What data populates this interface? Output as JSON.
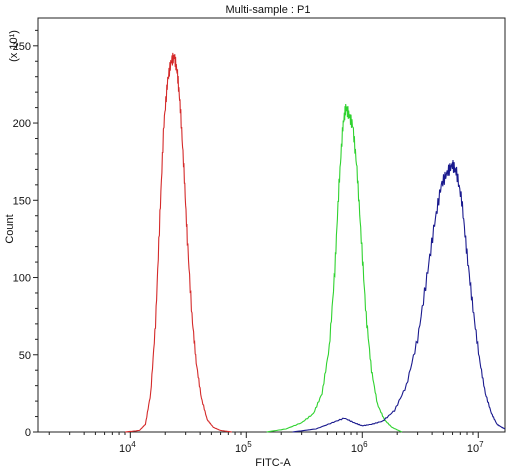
{
  "chart_data": {
    "type": "line",
    "title": "Multi-sample : P1",
    "xlabel": "FITC-A",
    "ylabel": "Count",
    "y_multiplier_label": "(x 10¹)",
    "x_scale": "log",
    "xlim": [
      1600,
      17000000
    ],
    "ylim": [
      0,
      268
    ],
    "x_ticks": [
      {
        "value": 10000,
        "base": "10",
        "exp": "4"
      },
      {
        "value": 100000,
        "base": "10",
        "exp": "5"
      },
      {
        "value": 1000000,
        "base": "10",
        "exp": "6"
      },
      {
        "value": 10000000,
        "base": "10",
        "exp": "7"
      }
    ],
    "y_ticks": [
      0,
      50,
      100,
      150,
      200,
      250
    ],
    "y_tick_labels": [
      "0",
      "50",
      "100",
      "150",
      "200",
      "250"
    ],
    "grid": false,
    "series": [
      {
        "color": "#d42a2a",
        "points": [
          [
            9000,
            0
          ],
          [
            12000,
            1
          ],
          [
            13500,
            5
          ],
          [
            15000,
            25
          ],
          [
            16500,
            70
          ],
          [
            18000,
            140
          ],
          [
            19500,
            200
          ],
          [
            21000,
            228
          ],
          [
            22500,
            240
          ],
          [
            24000,
            243
          ],
          [
            25500,
            232
          ],
          [
            27000,
            210
          ],
          [
            29000,
            170
          ],
          [
            31000,
            125
          ],
          [
            34000,
            75
          ],
          [
            37000,
            45
          ],
          [
            41000,
            22
          ],
          [
            46000,
            8
          ],
          [
            52000,
            3
          ],
          [
            60000,
            1
          ],
          [
            75000,
            0
          ]
        ]
      },
      {
        "color": "#2fd22f",
        "points": [
          [
            150000,
            0
          ],
          [
            220000,
            2
          ],
          [
            300000,
            6
          ],
          [
            380000,
            12
          ],
          [
            450000,
            25
          ],
          [
            520000,
            55
          ],
          [
            580000,
            105
          ],
          [
            630000,
            160
          ],
          [
            680000,
            198
          ],
          [
            720000,
            210
          ],
          [
            770000,
            205
          ],
          [
            830000,
            198
          ],
          [
            900000,
            170
          ],
          [
            980000,
            125
          ],
          [
            1080000,
            75
          ],
          [
            1200000,
            40
          ],
          [
            1350000,
            18
          ],
          [
            1550000,
            8
          ],
          [
            1800000,
            3
          ],
          [
            2200000,
            0
          ]
        ]
      },
      {
        "color": "#1a1a8e",
        "points": [
          [
            250000,
            0
          ],
          [
            400000,
            2
          ],
          [
            550000,
            6
          ],
          [
            700000,
            9
          ],
          [
            850000,
            6
          ],
          [
            1000000,
            4
          ],
          [
            1200000,
            5
          ],
          [
            1500000,
            7
          ],
          [
            1900000,
            14
          ],
          [
            2400000,
            30
          ],
          [
            3000000,
            60
          ],
          [
            3600000,
            100
          ],
          [
            4200000,
            135
          ],
          [
            4800000,
            160
          ],
          [
            5400000,
            168
          ],
          [
            6000000,
            173
          ],
          [
            6500000,
            168
          ],
          [
            7200000,
            150
          ],
          [
            8000000,
            115
          ],
          [
            9000000,
            80
          ],
          [
            10200000,
            48
          ],
          [
            11500000,
            25
          ],
          [
            13000000,
            12
          ],
          [
            14500000,
            5
          ],
          [
            16000000,
            3
          ],
          [
            17000000,
            2
          ]
        ]
      }
    ]
  }
}
